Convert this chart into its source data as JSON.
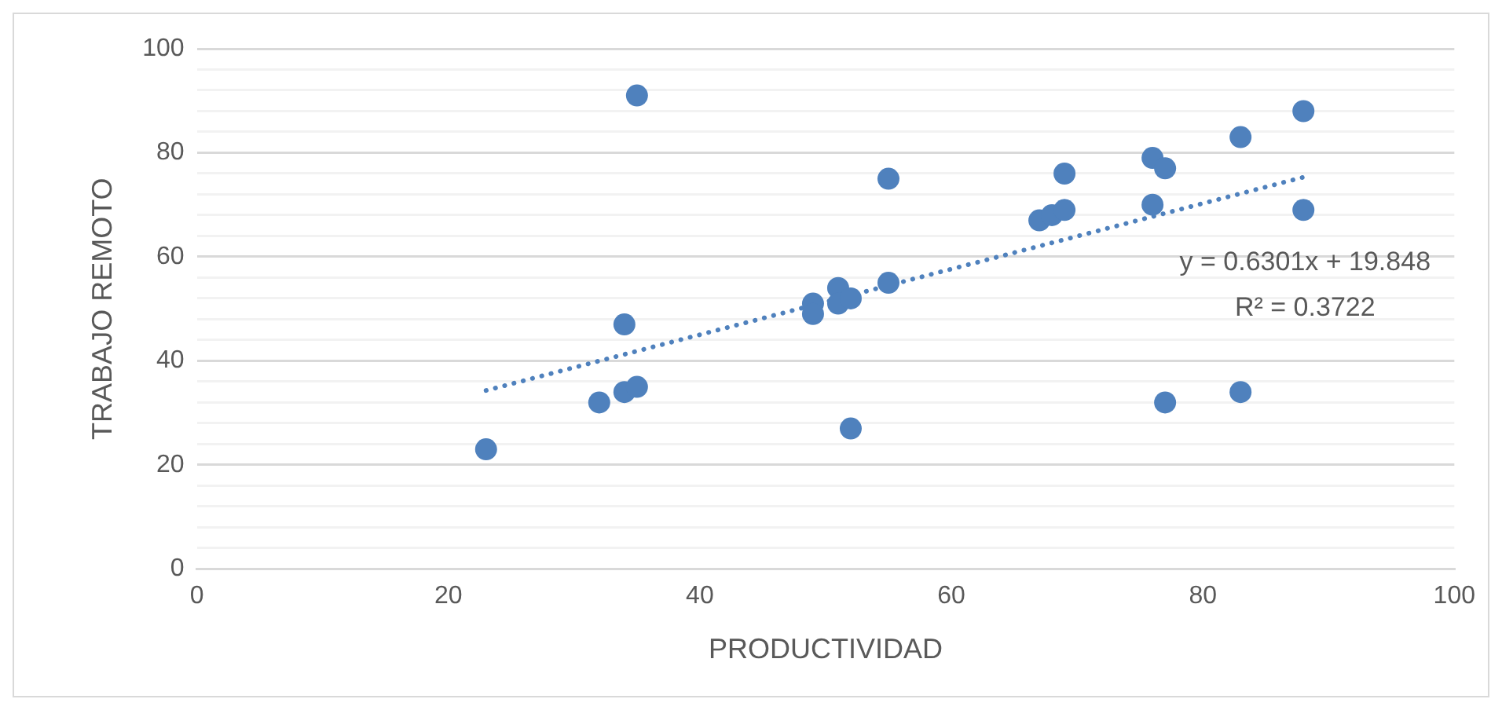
{
  "chart_data": {
    "type": "scatter",
    "xlabel": "PRODUCTIVIDAD",
    "ylabel": "TRABAJO REMOTO",
    "xlim": [
      0,
      100
    ],
    "xticks": [
      0,
      20,
      40,
      60,
      80,
      100
    ],
    "ylim": [
      0,
      100
    ],
    "yticks": [
      0,
      {
        "value": 4,
        "label": null
      },
      {
        "value": 8,
        "label": null
      },
      {
        "value": 12,
        "label": null
      },
      {
        "value": 16,
        "label": null
      },
      20,
      {
        "value": 24,
        "label": null
      },
      {
        "value": 28,
        "label": null
      },
      {
        "value": 32,
        "label": null
      },
      {
        "value": 36,
        "label": null
      },
      40,
      {
        "value": 44,
        "label": null
      },
      {
        "value": 48,
        "label": null
      },
      {
        "value": 52,
        "label": null
      },
      {
        "value": 56,
        "label": null
      },
      60,
      {
        "value": 64,
        "label": null
      },
      {
        "value": 68,
        "label": null
      },
      {
        "value": 72,
        "label": null
      },
      {
        "value": 76,
        "label": null
      },
      80,
      {
        "value": 84,
        "label": null
      },
      {
        "value": 88,
        "label": null
      },
      {
        "value": 92,
        "label": null
      },
      {
        "value": 96,
        "label": null
      },
      100
    ],
    "grid": "y",
    "legend": false,
    "annotations": [
      "y = 0.6301x + 19.848",
      "R² = 0.3722"
    ],
    "series": [
      {
        "marker": "circle",
        "color": "#4f81bd",
        "x": [
          23,
          32,
          34,
          35,
          34,
          35,
          49,
          49,
          51,
          51,
          52,
          52,
          55,
          55,
          67,
          68,
          69,
          69,
          76,
          77,
          76,
          77,
          83,
          83,
          88,
          88
        ],
        "values": [
          23,
          32,
          34,
          35,
          47,
          91,
          51,
          49,
          54,
          51,
          52,
          27,
          55,
          75,
          67,
          68,
          69,
          76,
          79,
          77,
          70,
          32,
          83,
          34,
          88,
          69
        ]
      },
      {
        "type": "line",
        "marker": "none",
        "line_style": "dotted",
        "color": "#4f81bd",
        "x": [
          23,
          88
        ],
        "values": [
          34.3,
          75.3
        ]
      }
    ]
  }
}
